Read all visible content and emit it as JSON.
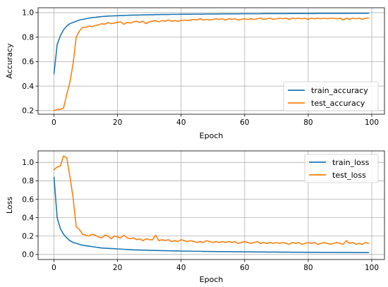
{
  "chart_data": [
    {
      "type": "line",
      "xlabel": "Epoch",
      "ylabel": "Accuracy",
      "xlim": [
        -5,
        104
      ],
      "ylim": [
        0.17,
        1.04
      ],
      "xticks": [
        0,
        20,
        40,
        60,
        80,
        100
      ],
      "xtick_labels": [
        "0",
        "20",
        "40",
        "60",
        "80",
        "100"
      ],
      "yticks": [
        0.2,
        0.4,
        0.6,
        0.8,
        1.0
      ],
      "ytick_labels": [
        "0.2",
        "0.4",
        "0.6",
        "0.8",
        "1.0"
      ],
      "grid": true,
      "legend_position": "lower-right",
      "series": [
        {
          "name": "train_accuracy",
          "color": "#1f77b4",
          "values": [
            0.5,
            0.74,
            0.81,
            0.86,
            0.89,
            0.91,
            0.92,
            0.93,
            0.94,
            0.945,
            0.95,
            0.955,
            0.96,
            0.962,
            0.965,
            0.968,
            0.97,
            0.972,
            0.973,
            0.974,
            0.975,
            0.976,
            0.977,
            0.978,
            0.979,
            0.98,
            0.98,
            0.981,
            0.982,
            0.982,
            0.983,
            0.983,
            0.984,
            0.984,
            0.985,
            0.985,
            0.985,
            0.986,
            0.986,
            0.986,
            0.987,
            0.987,
            0.987,
            0.987,
            0.988,
            0.988,
            0.988,
            0.988,
            0.989,
            0.989,
            0.989,
            0.989,
            0.989,
            0.99,
            0.99,
            0.99,
            0.99,
            0.99,
            0.99,
            0.991,
            0.991,
            0.991,
            0.991,
            0.991,
            0.991,
            0.991,
            0.992,
            0.992,
            0.992,
            0.992,
            0.992,
            0.992,
            0.992,
            0.992,
            0.993,
            0.993,
            0.993,
            0.993,
            0.993,
            0.993,
            0.993,
            0.993,
            0.993,
            0.994,
            0.994,
            0.994,
            0.994,
            0.994,
            0.994,
            0.994,
            0.994,
            0.994,
            0.994,
            0.995,
            0.995,
            0.995,
            0.995,
            0.995,
            0.995,
            0.995
          ]
        },
        {
          "name": "test_accuracy",
          "color": "#ff7f0e",
          "values": [
            0.2,
            0.21,
            0.21,
            0.22,
            0.33,
            0.43,
            0.58,
            0.8,
            0.85,
            0.88,
            0.88,
            0.89,
            0.885,
            0.895,
            0.9,
            0.91,
            0.905,
            0.92,
            0.91,
            0.915,
            0.92,
            0.925,
            0.905,
            0.92,
            0.915,
            0.925,
            0.93,
            0.92,
            0.93,
            0.91,
            0.925,
            0.93,
            0.935,
            0.925,
            0.935,
            0.93,
            0.94,
            0.93,
            0.935,
            0.93,
            0.935,
            0.94,
            0.935,
            0.94,
            0.945,
            0.94,
            0.95,
            0.94,
            0.945,
            0.94,
            0.945,
            0.95,
            0.945,
            0.95,
            0.94,
            0.95,
            0.945,
            0.95,
            0.94,
            0.945,
            0.95,
            0.945,
            0.95,
            0.945,
            0.95,
            0.955,
            0.945,
            0.95,
            0.955,
            0.945,
            0.95,
            0.955,
            0.95,
            0.955,
            0.945,
            0.955,
            0.95,
            0.955,
            0.95,
            0.955,
            0.945,
            0.955,
            0.95,
            0.955,
            0.95,
            0.955,
            0.95,
            0.955,
            0.955,
            0.95,
            0.955,
            0.94,
            0.955,
            0.945,
            0.955,
            0.95,
            0.955,
            0.945,
            0.955,
            0.955
          ]
        }
      ]
    },
    {
      "type": "line",
      "xlabel": "Epoch",
      "ylabel": "Loss",
      "xlim": [
        -5,
        104
      ],
      "ylim": [
        -0.055,
        1.125
      ],
      "xticks": [
        0,
        20,
        40,
        60,
        80,
        100
      ],
      "xtick_labels": [
        "0",
        "20",
        "40",
        "60",
        "80",
        "100"
      ],
      "yticks": [
        0.0,
        0.2,
        0.4,
        0.6,
        0.8,
        1.0
      ],
      "ytick_labels": [
        "0.0",
        "0.2",
        "0.4",
        "0.6",
        "0.8",
        "1.0"
      ],
      "grid": true,
      "legend_position": "upper-right",
      "series": [
        {
          "name": "train_loss",
          "color": "#1f77b4",
          "values": [
            0.84,
            0.4,
            0.28,
            0.22,
            0.18,
            0.15,
            0.13,
            0.12,
            0.11,
            0.1,
            0.095,
            0.09,
            0.085,
            0.08,
            0.075,
            0.07,
            0.068,
            0.066,
            0.064,
            0.062,
            0.06,
            0.058,
            0.056,
            0.054,
            0.052,
            0.05,
            0.049,
            0.048,
            0.047,
            0.046,
            0.045,
            0.044,
            0.043,
            0.042,
            0.041,
            0.04,
            0.04,
            0.039,
            0.038,
            0.038,
            0.037,
            0.036,
            0.036,
            0.035,
            0.035,
            0.034,
            0.034,
            0.033,
            0.033,
            0.032,
            0.032,
            0.031,
            0.031,
            0.031,
            0.03,
            0.03,
            0.03,
            0.029,
            0.029,
            0.029,
            0.028,
            0.028,
            0.028,
            0.027,
            0.027,
            0.027,
            0.027,
            0.026,
            0.026,
            0.026,
            0.026,
            0.025,
            0.025,
            0.025,
            0.025,
            0.024,
            0.024,
            0.024,
            0.024,
            0.023,
            0.023,
            0.023,
            0.023,
            0.023,
            0.022,
            0.022,
            0.022,
            0.022,
            0.022,
            0.021,
            0.021,
            0.021,
            0.021,
            0.021,
            0.02,
            0.02,
            0.02,
            0.02,
            0.02,
            0.02
          ]
        },
        {
          "name": "test_loss",
          "color": "#ff7f0e",
          "values": [
            0.92,
            0.95,
            0.96,
            1.07,
            1.05,
            0.85,
            0.62,
            0.3,
            0.27,
            0.22,
            0.21,
            0.2,
            0.22,
            0.21,
            0.19,
            0.18,
            0.21,
            0.2,
            0.17,
            0.2,
            0.19,
            0.18,
            0.21,
            0.18,
            0.17,
            0.18,
            0.16,
            0.17,
            0.15,
            0.17,
            0.16,
            0.16,
            0.21,
            0.15,
            0.16,
            0.15,
            0.16,
            0.14,
            0.15,
            0.14,
            0.16,
            0.15,
            0.14,
            0.15,
            0.14,
            0.13,
            0.14,
            0.13,
            0.15,
            0.14,
            0.13,
            0.14,
            0.13,
            0.14,
            0.13,
            0.14,
            0.13,
            0.14,
            0.12,
            0.13,
            0.14,
            0.13,
            0.12,
            0.13,
            0.14,
            0.12,
            0.13,
            0.12,
            0.13,
            0.12,
            0.13,
            0.12,
            0.13,
            0.12,
            0.11,
            0.13,
            0.12,
            0.13,
            0.11,
            0.12,
            0.13,
            0.12,
            0.13,
            0.11,
            0.12,
            0.13,
            0.12,
            0.11,
            0.12,
            0.13,
            0.12,
            0.11,
            0.15,
            0.12,
            0.13,
            0.11,
            0.12,
            0.11,
            0.13,
            0.12
          ]
        }
      ]
    }
  ]
}
